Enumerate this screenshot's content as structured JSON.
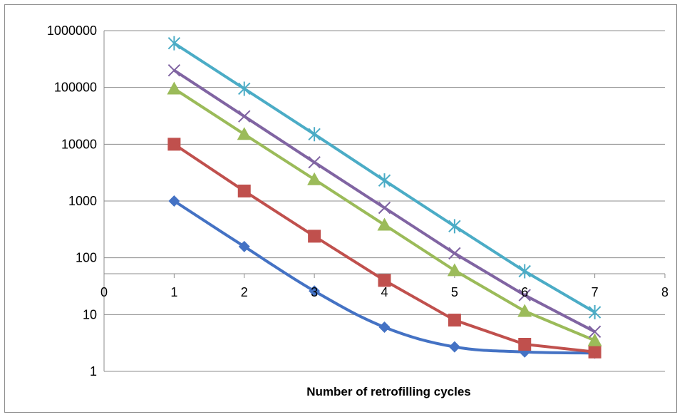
{
  "chart_data": {
    "type": "line",
    "title": "",
    "xlabel": "Number of retrofilling cycles",
    "ylabel": "",
    "y_scale": "log",
    "xlim": [
      0,
      8
    ],
    "ylim": [
      1,
      1000000
    ],
    "x_ticks": [
      "0",
      "1",
      "2",
      "3",
      "4",
      "5",
      "6",
      "7",
      "8"
    ],
    "y_ticks": [
      "1",
      "10",
      "100",
      "1000",
      "10000",
      "100000",
      "1000000"
    ],
    "grid": "horizontal",
    "legend": "none",
    "x": [
      1,
      2,
      3,
      4,
      5,
      6,
      7
    ],
    "series": [
      {
        "color": "#4472C4",
        "marker": "diamond",
        "smooth": true,
        "values": [
          1000,
          158,
          26,
          6,
          2.7,
          2.2,
          2.1
        ]
      },
      {
        "color": "#C0504D",
        "marker": "square",
        "smooth": false,
        "values": [
          10000,
          1500,
          240,
          40,
          8,
          3,
          2.2
        ]
      },
      {
        "color": "#9BBB59",
        "marker": "triangle",
        "smooth": false,
        "values": [
          95000,
          15000,
          2400,
          380,
          60,
          11.5,
          3.5
        ]
      },
      {
        "color": "#8064A2",
        "marker": "x",
        "smooth": false,
        "values": [
          200000,
          31000,
          4800,
          760,
          120,
          22,
          5
        ]
      },
      {
        "color": "#4BACC6",
        "marker": "star",
        "smooth": false,
        "values": [
          600000,
          95000,
          15000,
          2300,
          360,
          58,
          11
        ]
      }
    ]
  }
}
